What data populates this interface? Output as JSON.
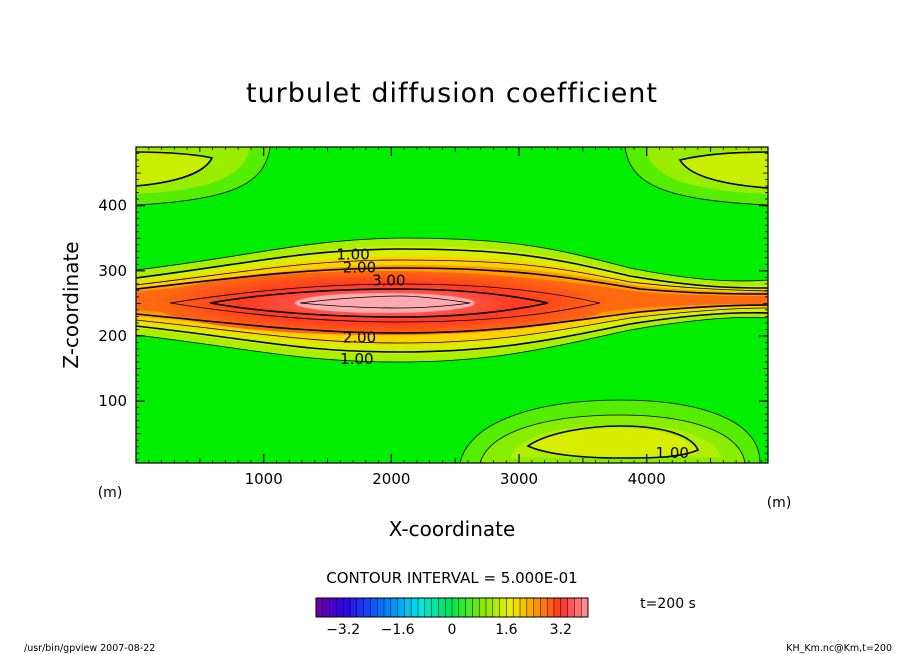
{
  "chart_data": {
    "type": "heatmap",
    "title": "turbulet diffusion coefficient",
    "xlabel": "X-coordinate",
    "ylabel": "Z-coordinate",
    "xunit": "(m)",
    "yunit": "(m)",
    "xlim": [
      0,
      4950
    ],
    "ylim": [
      5,
      490
    ],
    "xticks": [
      1000,
      2000,
      3000,
      4000
    ],
    "yticks": [
      100,
      200,
      300,
      400
    ],
    "contour_interval_label": "CONTOUR INTERVAL = 5.000E-01",
    "contour_labels": [
      {
        "text": "1.00",
        "x": 1700,
        "z": 325
      },
      {
        "text": "2.00",
        "x": 1750,
        "z": 305
      },
      {
        "text": "3.00",
        "x": 1980,
        "z": 285
      },
      {
        "text": "2.00",
        "x": 1750,
        "z": 198
      },
      {
        "text": "1.00",
        "x": 1730,
        "z": 165
      },
      {
        "text": "1.00",
        "x": 4200,
        "z": 20
      }
    ],
    "features": [
      {
        "name": "central-band",
        "x_center": 1850,
        "z_center": 250,
        "peak": 3.8
      },
      {
        "name": "bottom-blob",
        "x_center": 3750,
        "z_center": 35,
        "peak": 1.4
      },
      {
        "name": "top-left-blob",
        "x_center": 150,
        "z_center": 455,
        "peak": 1.4
      },
      {
        "name": "top-right-blob",
        "x_center": 4750,
        "z_center": 455,
        "peak": 1.4
      }
    ],
    "colorbar": {
      "ticks": [
        "−3.2",
        "−1.6",
        "0",
        "1.6",
        "3.2"
      ],
      "tick_values": [
        -3.2,
        -1.6,
        0,
        1.6,
        3.2
      ],
      "range": [
        -4,
        4
      ]
    },
    "time_label": "t=200 s"
  },
  "footer": {
    "left": "/usr/bin/gpview  2007-08-22",
    "right": "KH_Km.nc@Km,t=200"
  }
}
